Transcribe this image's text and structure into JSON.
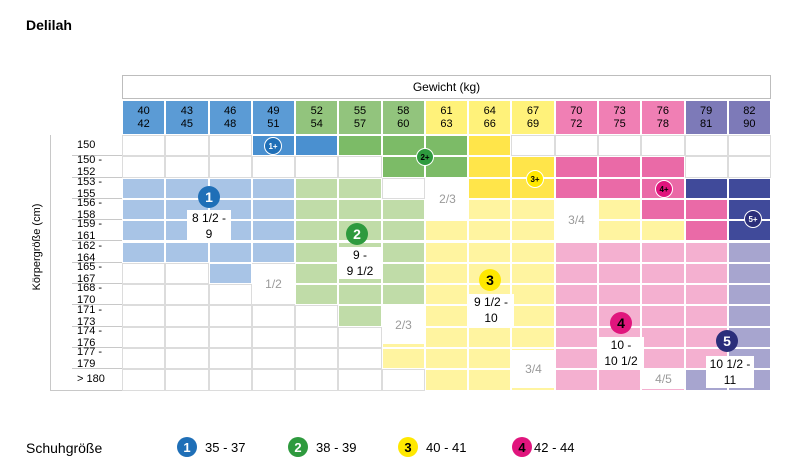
{
  "title": "Delilah",
  "weight_header": "Gewicht (kg)",
  "height_header": "Körpergröße (cm)",
  "weights": [
    [
      "40",
      "42"
    ],
    [
      "43",
      "45"
    ],
    [
      "46",
      "48"
    ],
    [
      "49",
      "51"
    ],
    [
      "52",
      "54"
    ],
    [
      "55",
      "57"
    ],
    [
      "58",
      "60"
    ],
    [
      "61",
      "63"
    ],
    [
      "64",
      "66"
    ],
    [
      "67",
      "69"
    ],
    [
      "70",
      "72"
    ],
    [
      "73",
      "75"
    ],
    [
      "76",
      "78"
    ],
    [
      "79",
      "81"
    ],
    [
      "82",
      "90"
    ]
  ],
  "heights": [
    "150",
    "150 - 152",
    "153 - 155",
    "156 - 158",
    "159 - 161",
    "162 - 164",
    "165 - 167",
    "168 - 170",
    "171 - 173",
    "174 - 176",
    "177 - 179",
    "> 180"
  ],
  "size_labels": {
    "s1": "8 1/2 -\n9",
    "s2": "9 -\n9 1/2",
    "s3": "9 1/2 -\n10",
    "s4": "10 -\n10 1/2",
    "s5": "10 1/2 -\n11"
  },
  "between_labels": {
    "b12": "1/2",
    "b23a": "2/3",
    "b23b": "2/3",
    "b34a": "3/4",
    "b34b": "3/4",
    "b45": "4/5"
  },
  "badges": {
    "n1": "1",
    "n2": "2",
    "n3": "3",
    "n4": "4",
    "n5": "5",
    "p1": "1+",
    "p2": "2+",
    "p3": "3+",
    "p4": "4+",
    "p5": "5+"
  },
  "legend": {
    "title": "Schuhgröße",
    "items": [
      {
        "num": "1",
        "range": "35 - 37"
      },
      {
        "num": "2",
        "range": "38 - 39"
      },
      {
        "num": "3",
        "range": "40 - 41"
      },
      {
        "num": "4",
        "range": "42 - 44"
      }
    ]
  },
  "colors": {
    "blue_dark": "#4a90d0",
    "blue_light": "#a8c4e6",
    "blue_head": "#5b9bd5",
    "green_dark": "#7cbb67",
    "green_light": "#c0dca8",
    "green_head": "#92c47d",
    "yellow_dark": "#ffe54a",
    "yellow_light": "#fff4a0",
    "yellow_head": "#fff27a",
    "pink_dark": "#ea6aa7",
    "pink_light": "#f4b0d0",
    "pink_head": "#f07fb4",
    "purple_dark": "#404a9a",
    "purple_light": "#a7a5cf",
    "purple_head": "#7d7ab8",
    "badge1": "#1f6fb7",
    "badge2": "#2e9a3e",
    "badge3": "#ffe800",
    "badge4": "#e0157d",
    "badge5": "#2b2e7a"
  }
}
